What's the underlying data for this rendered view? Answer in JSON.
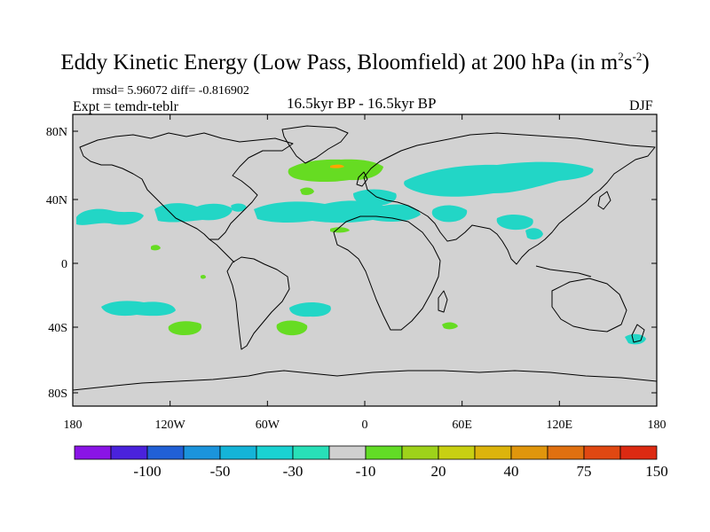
{
  "header": {
    "title_main": "Eddy Kinetic Energy (Low Pass, Bloomfield) at 200 hPa (in m",
    "title_sup1": "2",
    "title_mid": "s",
    "title_sup2": "-2",
    "title_end": ")",
    "stats": "rmsd= 5.96072 diff= -0.816902",
    "experiment": "Expt = temdr-teblr",
    "center_label": "16.5kyr BP - 16.5kyr BP",
    "season": "DJF"
  },
  "axes": {
    "lat_labels": [
      "80N",
      "40N",
      "0",
      "40S",
      "80S"
    ],
    "lon_labels": [
      "180",
      "120W",
      "60W",
      "0",
      "60E",
      "120E",
      "180"
    ]
  },
  "colorbar": {
    "colors": [
      "#8a14e6",
      "#4a22dc",
      "#2160d6",
      "#1b94dc",
      "#14b4d8",
      "#1ad2d2",
      "#28e0b8",
      "#d0d0d0",
      "#62dc26",
      "#9ed21a",
      "#c8d012",
      "#dcb40c",
      "#e0960c",
      "#e07010",
      "#e04812",
      "#dc2a12"
    ],
    "labels": [
      "-100",
      "-50",
      "-30",
      "-10",
      "20",
      "40",
      "75",
      "150"
    ]
  },
  "map_colors": {
    "background": "#d2d2d2",
    "cyan": "#22d6c6",
    "green": "#66dc22",
    "orange": "#ffa500"
  }
}
